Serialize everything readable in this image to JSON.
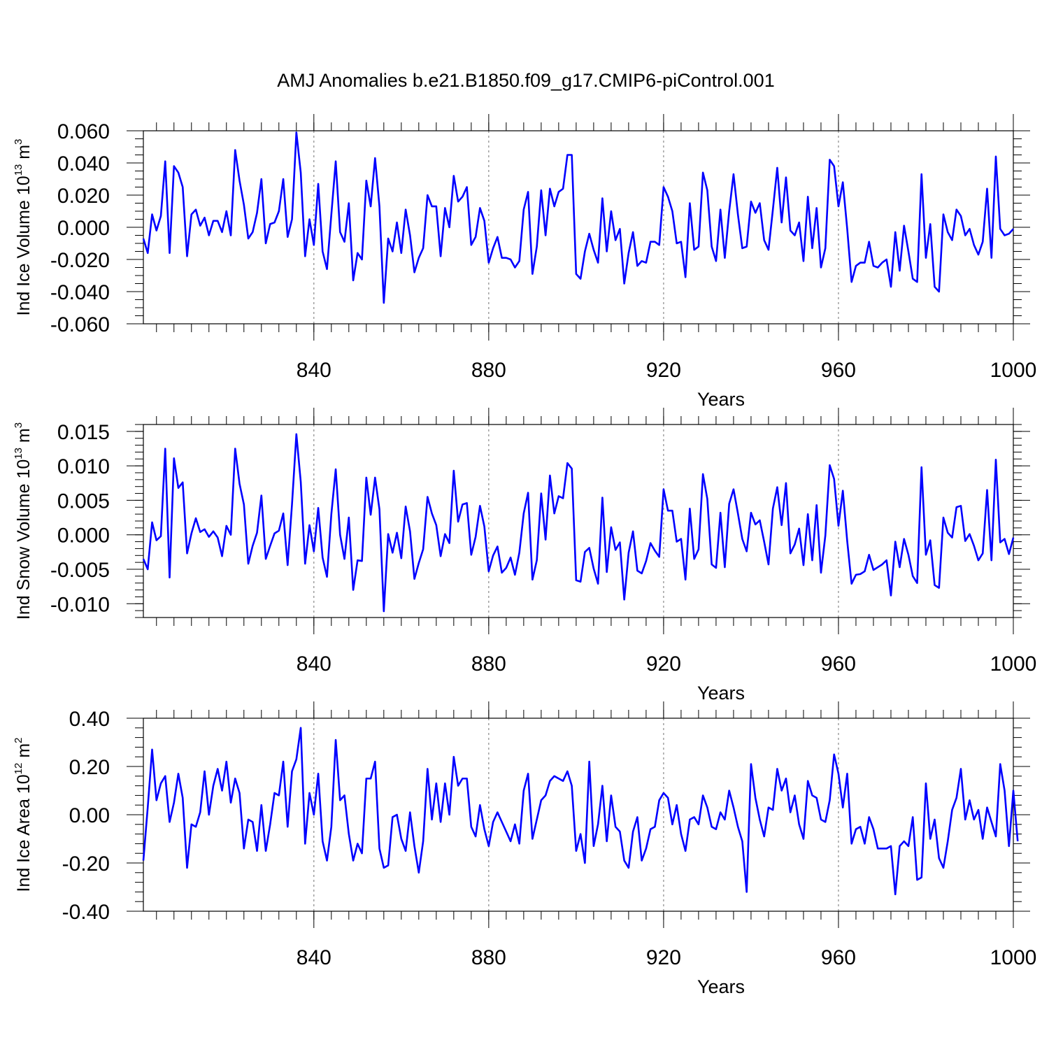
{
  "title": "AMJ Anomalies b.e21.B1850.f09_g17.CMIP6-piControl.001",
  "colors": {
    "series": "#0000ff",
    "axis": "#000000",
    "grid": "#888888"
  },
  "chart_data": [
    {
      "type": "line",
      "title": "AMJ Anomalies b.e21.B1850.f09_g17.CMIP6-piControl.001",
      "ylabel_text": "Ind Ice Volume 10",
      "ylabel_exp": "13",
      "ylabel_unit": "m",
      "ylabel_unit_exp": "3",
      "xlabel": "Years",
      "xlim": [
        801,
        1000
      ],
      "ylim": [
        -0.06,
        0.06
      ],
      "ytick_values": [
        -0.06,
        -0.04,
        -0.02,
        0.0,
        0.02,
        0.04,
        0.06
      ],
      "ytick_labels": [
        "-0.060",
        "-0.040",
        "-0.020",
        "0.000",
        "0.020",
        "0.040",
        "0.060"
      ],
      "yminor_step": 0.005,
      "xtick_values": [
        840,
        880,
        920,
        960,
        1000
      ],
      "xtick_labels": [
        "840",
        "880",
        "920",
        "960",
        "1000"
      ],
      "grid_x": [
        840,
        880,
        920,
        960
      ],
      "x_start": 801,
      "values": [
        -0.007,
        -0.016,
        0.008,
        -0.002,
        0.007,
        0.041,
        -0.016,
        0.038,
        0.034,
        0.025,
        -0.018,
        0.008,
        0.011,
        0.001,
        0.006,
        -0.005,
        0.004,
        0.004,
        -0.003,
        0.01,
        -0.005,
        0.048,
        0.029,
        0.014,
        -0.007,
        -0.003,
        0.009,
        0.03,
        -0.01,
        0.002,
        0.003,
        0.01,
        0.03,
        -0.006,
        0.005,
        0.059,
        0.034,
        -0.018,
        0.005,
        -0.011,
        0.027,
        -0.015,
        -0.026,
        0.008,
        0.041,
        -0.003,
        -0.009,
        0.015,
        -0.033,
        -0.016,
        -0.02,
        0.029,
        0.013,
        0.043,
        0.013,
        -0.047,
        -0.007,
        -0.015,
        0.003,
        -0.016,
        0.011,
        -0.005,
        -0.028,
        -0.019,
        -0.013,
        0.02,
        0.013,
        0.013,
        -0.018,
        0.012,
        0.0,
        0.032,
        0.016,
        0.019,
        0.025,
        -0.011,
        -0.006,
        0.012,
        0.004,
        -0.022,
        -0.013,
        -0.006,
        -0.019,
        -0.019,
        -0.02,
        -0.025,
        -0.021,
        0.011,
        0.022,
        -0.029,
        -0.012,
        0.023,
        -0.005,
        0.024,
        0.013,
        0.022,
        0.024,
        0.045,
        0.045,
        -0.029,
        -0.032,
        -0.015,
        -0.004,
        -0.014,
        -0.022,
        0.018,
        -0.015,
        0.01,
        -0.008,
        -0.001,
        -0.035,
        -0.016,
        -0.003,
        -0.024,
        -0.021,
        -0.022,
        -0.009,
        -0.009,
        -0.011,
        0.025,
        0.019,
        0.01,
        -0.01,
        -0.009,
        -0.031,
        0.015,
        -0.014,
        -0.012,
        0.034,
        0.023,
        -0.012,
        -0.021,
        0.011,
        -0.019,
        0.01,
        0.033,
        0.008,
        -0.013,
        -0.012,
        0.016,
        0.009,
        0.015,
        -0.008,
        -0.014,
        0.011,
        0.037,
        0.003,
        0.031,
        -0.002,
        -0.005,
        0.003,
        -0.021,
        0.019,
        -0.013,
        0.012,
        -0.025,
        -0.013,
        0.042,
        0.038,
        0.013,
        0.028,
        -0.001,
        -0.034,
        -0.024,
        -0.022,
        -0.022,
        -0.009,
        -0.024,
        -0.025,
        -0.022,
        -0.02,
        -0.037,
        -0.003,
        -0.027,
        0.001,
        -0.015,
        -0.032,
        -0.034,
        0.033,
        -0.019,
        0.002,
        -0.037,
        -0.04,
        0.008,
        -0.003,
        -0.008,
        0.011,
        0.007,
        -0.005,
        -0.001,
        -0.011,
        -0.017,
        -0.009,
        0.024,
        -0.019,
        0.044,
        -0.001,
        -0.005,
        -0.004,
        -0.001
      ]
    },
    {
      "type": "line",
      "ylabel_text": "Ind Snow Volume 10",
      "ylabel_exp": "13",
      "ylabel_unit": "m",
      "ylabel_unit_exp": "3",
      "xlabel": "Years",
      "xlim": [
        801,
        1000
      ],
      "ylim": [
        -0.012,
        0.016
      ],
      "ytick_values": [
        -0.01,
        -0.005,
        0.0,
        0.005,
        0.01,
        0.015
      ],
      "ytick_labels": [
        "-0.010",
        "-0.005",
        "0.000",
        "0.005",
        "0.010",
        "0.015"
      ],
      "yminor_step": 0.001,
      "xtick_values": [
        840,
        880,
        920,
        960,
        1000
      ],
      "xtick_labels": [
        "840",
        "880",
        "920",
        "960",
        "1000"
      ],
      "grid_x": [
        840,
        880,
        920,
        960
      ],
      "x_start": 801,
      "values": [
        -0.0035,
        -0.005,
        0.0018,
        -0.0008,
        -0.0002,
        0.0125,
        -0.0062,
        0.0111,
        0.0068,
        0.0076,
        -0.0027,
        0.0002,
        0.0024,
        0.0004,
        0.0008,
        -0.0003,
        0.0005,
        -0.0004,
        -0.0031,
        0.0013,
        0.0,
        0.0125,
        0.0074,
        0.0044,
        -0.0042,
        -0.0016,
        0.0003,
        0.0057,
        -0.0035,
        -0.0016,
        0.0002,
        0.0006,
        0.0031,
        -0.0044,
        0.0044,
        0.0146,
        0.0077,
        -0.0042,
        0.0014,
        -0.0024,
        0.0039,
        -0.0033,
        -0.0061,
        0.003,
        0.0095,
        0.0,
        -0.0035,
        0.0025,
        -0.008,
        -0.0037,
        -0.0038,
        0.0083,
        0.0029,
        0.0083,
        0.0037,
        -0.0111,
        0.0001,
        -0.0026,
        0.0003,
        -0.0034,
        0.0041,
        0.0005,
        -0.0064,
        -0.0041,
        -0.0021,
        0.0055,
        0.0031,
        0.0014,
        -0.0031,
        0.0001,
        -0.0012,
        0.0093,
        0.0019,
        0.0044,
        0.0046,
        -0.0029,
        -0.0003,
        0.0042,
        0.0012,
        -0.0053,
        -0.003,
        -0.0017,
        -0.0055,
        -0.0048,
        -0.0033,
        -0.0058,
        -0.0026,
        0.0031,
        0.0061,
        -0.0065,
        -0.0037,
        0.006,
        -0.0007,
        0.0086,
        0.0031,
        0.0056,
        0.0053,
        0.0104,
        0.0096,
        -0.0066,
        -0.0068,
        -0.0025,
        -0.0019,
        -0.0049,
        -0.0071,
        0.0054,
        -0.0054,
        0.0011,
        -0.0022,
        -0.0011,
        -0.0094,
        -0.0026,
        0.0005,
        -0.0052,
        -0.0056,
        -0.0038,
        -0.0012,
        -0.0023,
        -0.0032,
        0.0066,
        0.0035,
        0.0035,
        -0.001,
        -0.0006,
        -0.0065,
        0.0038,
        -0.0035,
        -0.0021,
        0.0088,
        0.0052,
        -0.0043,
        -0.0048,
        0.0032,
        -0.0047,
        0.0045,
        0.0066,
        0.0031,
        -0.0006,
        -0.0024,
        0.0032,
        0.0015,
        0.0021,
        -0.001,
        -0.0043,
        0.0038,
        0.0069,
        0.0014,
        0.0075,
        -0.0027,
        -0.0014,
        0.0009,
        -0.0044,
        0.003,
        -0.0037,
        0.0043,
        -0.0055,
        -0.0001,
        0.0101,
        0.0081,
        0.0013,
        0.0064,
        -0.0009,
        -0.0071,
        -0.0058,
        -0.0057,
        -0.0053,
        -0.0029,
        -0.0051,
        -0.0047,
        -0.0043,
        -0.0037,
        -0.0088,
        -0.001,
        -0.0047,
        -0.0006,
        -0.0029,
        -0.006,
        -0.007,
        0.0098,
        -0.0029,
        -0.0008,
        -0.0073,
        -0.0077,
        0.0025,
        0.0003,
        -0.0004,
        0.004,
        0.0042,
        -0.0009,
        0.0001,
        -0.0016,
        -0.0037,
        -0.0027,
        0.0065,
        -0.0037,
        0.0109,
        -0.0011,
        -0.0006,
        -0.0028,
        -0.0004
      ]
    },
    {
      "type": "line",
      "ylabel_text": "Ind Ice Area 10",
      "ylabel_exp": "12",
      "ylabel_unit": "m",
      "ylabel_unit_exp": "2",
      "xlabel": "Years",
      "xlim": [
        801,
        1000
      ],
      "ylim": [
        -0.4,
        0.4
      ],
      "ytick_values": [
        -0.4,
        -0.2,
        0.0,
        0.2,
        0.4
      ],
      "ytick_labels": [
        "-0.40",
        "-0.20",
        "0.00",
        "0.20",
        "0.40"
      ],
      "yminor_step": 0.04,
      "xtick_values": [
        840,
        880,
        920,
        960,
        1000
      ],
      "xtick_labels": [
        "840",
        "880",
        "920",
        "960",
        "1000"
      ],
      "grid_x": [
        840,
        880,
        920,
        960
      ],
      "x_start": 801,
      "values": [
        -0.19,
        0.03,
        0.27,
        0.06,
        0.13,
        0.16,
        -0.03,
        0.05,
        0.17,
        0.07,
        -0.22,
        -0.04,
        -0.05,
        0.01,
        0.18,
        0.0,
        0.12,
        0.19,
        0.1,
        0.22,
        0.05,
        0.15,
        0.09,
        -0.14,
        -0.02,
        -0.03,
        -0.15,
        0.04,
        -0.15,
        -0.04,
        0.09,
        0.08,
        0.22,
        -0.05,
        0.18,
        0.23,
        0.36,
        -0.12,
        0.09,
        0.0,
        0.17,
        -0.11,
        -0.19,
        -0.05,
        0.31,
        0.06,
        0.08,
        -0.08,
        -0.19,
        -0.12,
        -0.16,
        0.15,
        0.15,
        0.22,
        -0.14,
        -0.22,
        -0.21,
        -0.01,
        0.0,
        -0.1,
        -0.15,
        0.01,
        -0.13,
        -0.24,
        -0.11,
        0.19,
        -0.02,
        0.13,
        -0.03,
        0.13,
        0.0,
        0.24,
        0.12,
        0.15,
        0.15,
        -0.05,
        -0.09,
        0.04,
        -0.06,
        -0.13,
        -0.03,
        0.01,
        -0.03,
        -0.07,
        -0.11,
        -0.04,
        -0.12,
        0.1,
        0.17,
        -0.1,
        -0.02,
        0.06,
        0.08,
        0.14,
        0.16,
        0.15,
        0.14,
        0.18,
        0.12,
        -0.15,
        -0.08,
        -0.2,
        0.22,
        -0.13,
        -0.04,
        0.12,
        -0.11,
        0.08,
        -0.05,
        -0.07,
        -0.19,
        -0.22,
        -0.07,
        -0.01,
        -0.19,
        -0.14,
        -0.06,
        -0.05,
        0.06,
        0.09,
        0.07,
        -0.04,
        0.04,
        -0.08,
        -0.15,
        -0.02,
        -0.01,
        -0.04,
        0.08,
        0.03,
        -0.05,
        -0.06,
        0.01,
        -0.02,
        0.1,
        0.03,
        -0.05,
        -0.11,
        -0.32,
        0.21,
        0.07,
        -0.02,
        -0.09,
        0.03,
        0.02,
        0.19,
        0.1,
        0.15,
        0.01,
        0.08,
        -0.04,
        -0.1,
        0.14,
        0.08,
        0.07,
        -0.02,
        -0.03,
        0.06,
        0.25,
        0.17,
        0.03,
        0.17,
        -0.12,
        -0.06,
        -0.05,
        -0.12,
        -0.01,
        -0.06,
        -0.14,
        -0.14,
        -0.14,
        -0.13,
        -0.33,
        -0.13,
        -0.11,
        -0.13,
        -0.01,
        -0.27,
        -0.26,
        0.13,
        -0.1,
        -0.02,
        -0.18,
        -0.22,
        -0.11,
        0.02,
        0.07,
        0.19,
        -0.02,
        0.06,
        -0.02,
        0.02,
        -0.1,
        0.03,
        -0.03,
        -0.09,
        0.21,
        0.1,
        -0.13,
        0.1,
        -0.11
      ]
    }
  ]
}
